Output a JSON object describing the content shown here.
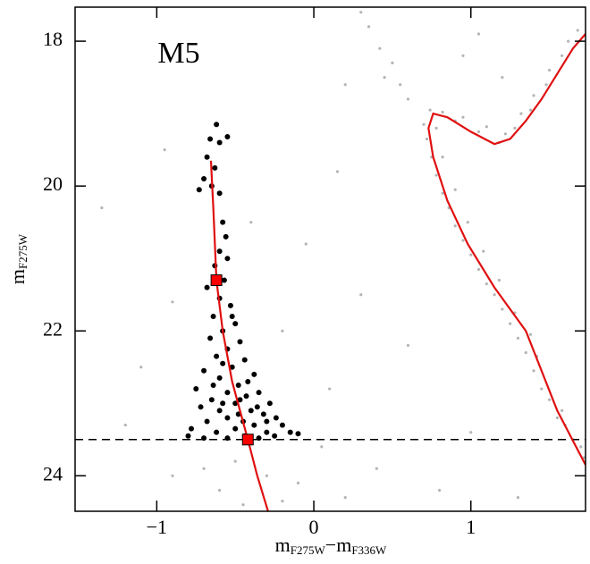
{
  "chart_data": {
    "type": "scatter",
    "annotation": "M5",
    "annotation_color": "#2020e0",
    "xlabel": [
      "m",
      "F275W",
      "−m",
      "F336W"
    ],
    "ylabel": [
      "m",
      "F275W"
    ],
    "xlim": [
      -1.52,
      1.73
    ],
    "ylim": [
      24.49,
      17.53
    ],
    "xticks": [
      {
        "value": -1,
        "label": "−1"
      },
      0,
      1
    ],
    "yticks": [
      18,
      20,
      22,
      24
    ],
    "hline": 23.5,
    "series": [
      {
        "type": "scatter",
        "color": "#b4b4b4",
        "size": 1.6,
        "x": [
          1.7,
          1.65,
          1.72,
          1.6,
          1.55,
          1.5,
          1.58,
          1.45,
          1.4,
          1.42,
          1.35,
          1.3,
          1.38,
          1.25,
          1.2,
          1.28,
          1.15,
          1.1,
          1.18,
          1.05,
          1.0,
          1.08,
          0.95,
          0.9,
          0.98,
          0.86,
          0.82,
          0.9,
          0.78,
          0.75,
          0.82,
          0.72,
          0.7,
          0.78,
          0.74,
          0.82,
          0.9,
          0.95,
          1.05,
          1.1,
          1.18,
          1.22,
          1.28,
          1.32,
          1.38,
          1.4,
          1.48,
          1.5,
          1.58,
          1.62,
          1.68,
          0.3,
          0.35,
          0.42,
          0.5,
          0.55,
          0.6,
          0.45,
          0.95,
          1.05,
          1.2,
          -1.35,
          -0.9,
          -1.1,
          -0.2,
          0.1,
          0.3,
          -0.4,
          0.15,
          -1.2,
          0.05,
          -0.5,
          -0.3,
          -0.6,
          -0.2,
          -0.7,
          -0.1,
          0.2,
          -0.9,
          -0.45,
          0.4,
          0.8,
          1.3,
          1.0,
          0.6,
          -0.95,
          0.2,
          -0.05
        ],
        "y": [
          23.6,
          23.5,
          23.75,
          23.3,
          23.2,
          22.95,
          23.1,
          22.8,
          22.55,
          22.35,
          22.3,
          22.1,
          22.05,
          21.9,
          21.7,
          21.75,
          21.5,
          21.35,
          21.3,
          21.15,
          20.95,
          20.9,
          20.75,
          20.55,
          20.5,
          20.3,
          20.1,
          20.05,
          19.85,
          19.6,
          19.6,
          19.35,
          19.15,
          19.2,
          18.95,
          18.98,
          19.1,
          19.05,
          19.25,
          19.18,
          19.4,
          19.28,
          19.2,
          19.0,
          18.95,
          18.75,
          18.6,
          18.4,
          18.2,
          18.0,
          17.85,
          17.6,
          17.8,
          18.1,
          18.3,
          18.6,
          18.8,
          18.5,
          18.2,
          17.9,
          18.5,
          20.3,
          21.6,
          22.5,
          22.0,
          22.8,
          21.5,
          20.5,
          19.8,
          23.3,
          23.6,
          23.8,
          24.0,
          24.2,
          24.35,
          23.9,
          24.1,
          24.3,
          24.0,
          24.4,
          23.9,
          24.2,
          24.3,
          23.4,
          22.2,
          19.5,
          18.6,
          20.8
        ]
      },
      {
        "type": "scatter",
        "color": "#000000",
        "size": 3,
        "x": [
          -0.62,
          -0.66,
          -0.6,
          -0.55,
          -0.68,
          -0.63,
          -0.7,
          -0.65,
          -0.73,
          -0.6,
          -0.58,
          -0.56,
          -0.6,
          -0.55,
          -0.63,
          -0.57,
          -0.68,
          -0.6,
          -0.53,
          -0.64,
          -0.5,
          -0.58,
          -0.66,
          -0.47,
          -0.55,
          -0.62,
          -0.44,
          -0.52,
          -0.7,
          -0.38,
          -0.6,
          -0.48,
          -0.75,
          -0.55,
          -0.35,
          -0.43,
          -0.65,
          -0.28,
          -0.5,
          -0.72,
          -0.4,
          -0.6,
          -0.32,
          -0.24,
          -0.55,
          -0.45,
          -0.68,
          -0.2,
          -0.38,
          -0.78,
          -0.5,
          -0.3,
          -0.62,
          -0.15,
          -0.44,
          -0.8,
          -0.25,
          -0.55,
          -0.35,
          -0.7,
          -0.1,
          -0.48,
          -0.58,
          -0.42,
          -0.52,
          -0.47,
          -0.36,
          -0.64,
          -0.3,
          -0.58
        ],
        "y": [
          19.15,
          19.35,
          19.4,
          19.32,
          19.6,
          19.75,
          19.9,
          20.0,
          20.05,
          20.1,
          20.5,
          20.7,
          20.9,
          21.0,
          21.1,
          21.3,
          21.4,
          21.55,
          21.65,
          21.8,
          21.9,
          22.0,
          22.1,
          22.15,
          22.25,
          22.35,
          22.4,
          22.5,
          22.55,
          22.6,
          22.65,
          22.75,
          22.8,
          22.85,
          22.85,
          22.9,
          22.95,
          23.0,
          23.0,
          23.05,
          23.1,
          23.1,
          23.15,
          23.2,
          23.2,
          23.25,
          23.25,
          23.3,
          23.3,
          23.35,
          23.35,
          23.4,
          23.4,
          23.4,
          23.45,
          23.45,
          23.45,
          23.48,
          23.48,
          23.48,
          23.42,
          23.15,
          22.45,
          22.7,
          21.8,
          22.95,
          23.05,
          22.75,
          23.25,
          23.0
        ]
      },
      {
        "type": "line",
        "color": "#e01010",
        "x": [
          -0.655,
          -0.64,
          -0.62,
          -0.58,
          -0.52,
          -0.42,
          -0.36,
          -0.29
        ],
        "y": [
          19.65,
          20.3,
          21.3,
          22.0,
          22.7,
          23.5,
          24.0,
          24.5
        ]
      },
      {
        "type": "line",
        "color": "#e01010",
        "x": [
          1.73,
          1.55,
          1.35,
          1.15,
          0.98,
          0.85,
          0.76,
          0.73,
          0.76,
          0.85,
          1.0,
          1.15,
          1.25,
          1.35,
          1.45,
          1.55,
          1.65,
          1.73
        ],
        "y": [
          23.85,
          23.1,
          22.0,
          21.4,
          20.8,
          20.2,
          19.6,
          19.2,
          19.0,
          19.05,
          19.25,
          19.42,
          19.35,
          19.1,
          18.8,
          18.45,
          18.1,
          17.9
        ]
      },
      {
        "type": "square",
        "color": "#ff0000",
        "x": [
          -0.62,
          -0.42
        ],
        "y": [
          21.3,
          23.5
        ]
      }
    ]
  }
}
